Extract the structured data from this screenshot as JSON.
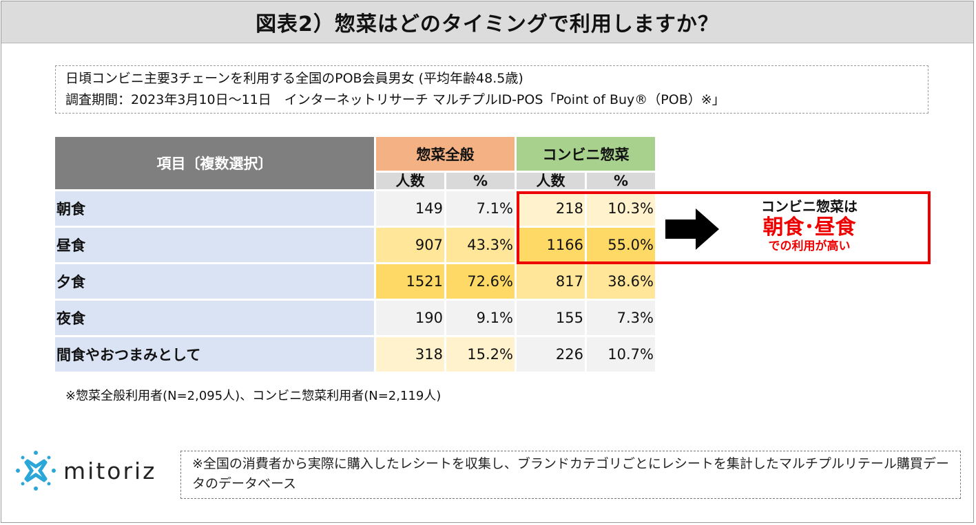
{
  "title": "図表2）惣菜はどのタイミングで利用しますか？",
  "survey": {
    "line1": "日頃コンビニ主要3チェーンを利用する全国のPOB会員男女 (平均年齢48.5歳)",
    "line2": " 調査期間：2023年3月10日～11日　インターネットリサーチ マルチプルID-POS「Point of Buy®（POB）※」"
  },
  "chart_data": {
    "type": "table",
    "header_item": "項目〔複数選択〕",
    "groups": [
      "惣菜全般",
      "コンビニ惣菜"
    ],
    "subheaders": [
      "人数",
      "%",
      "人数",
      "%"
    ],
    "rows": [
      {
        "label": "朝食",
        "souzai_count": "149",
        "souzai_pct": "7.1%",
        "conv_count": "218",
        "conv_pct": "10.3%"
      },
      {
        "label": "昼食",
        "souzai_count": "907",
        "souzai_pct": "43.3%",
        "conv_count": "1166",
        "conv_pct": "55.0%"
      },
      {
        "label": "夕食",
        "souzai_count": "1521",
        "souzai_pct": "72.6%",
        "conv_count": "817",
        "conv_pct": "38.6%"
      },
      {
        "label": "夜食",
        "souzai_count": "190",
        "souzai_pct": "9.1%",
        "conv_count": "155",
        "conv_pct": "7.3%"
      },
      {
        "label": "間食やおつまみとして",
        "souzai_count": "318",
        "souzai_pct": "15.2%",
        "conv_count": "226",
        "conv_pct": "10.7%"
      }
    ],
    "cell_colors": {
      "none": "#f2f2f2",
      "light": "#fff2cc",
      "mid": "#ffe699",
      "strong": "#ffd966"
    },
    "highlight_levels": [
      [
        "none",
        "none",
        "light",
        "light"
      ],
      [
        "mid",
        "mid",
        "strong",
        "strong"
      ],
      [
        "strong",
        "strong",
        "mid",
        "mid"
      ],
      [
        "none",
        "none",
        "none",
        "none"
      ],
      [
        "light",
        "light",
        "none",
        "none"
      ]
    ]
  },
  "note": "※惣菜全般利用者(N=2,095人)、コンビニ惣菜利用者(N=2,119人)",
  "callout": {
    "line1": "コンビニ惣菜は",
    "line2": "朝食･昼食",
    "line3": "での利用が高い",
    "border_color": "#ee0000"
  },
  "logo": {
    "text": "mitoriz",
    "icon": "sparkle-logo-icon",
    "accent": "#2aa7d8"
  },
  "footer_note": "※全国の消費者から実際に購入したレシートを収集し、ブランドカテゴリごとにレシートを集計したマルチプルリテール購買データのデータベース"
}
